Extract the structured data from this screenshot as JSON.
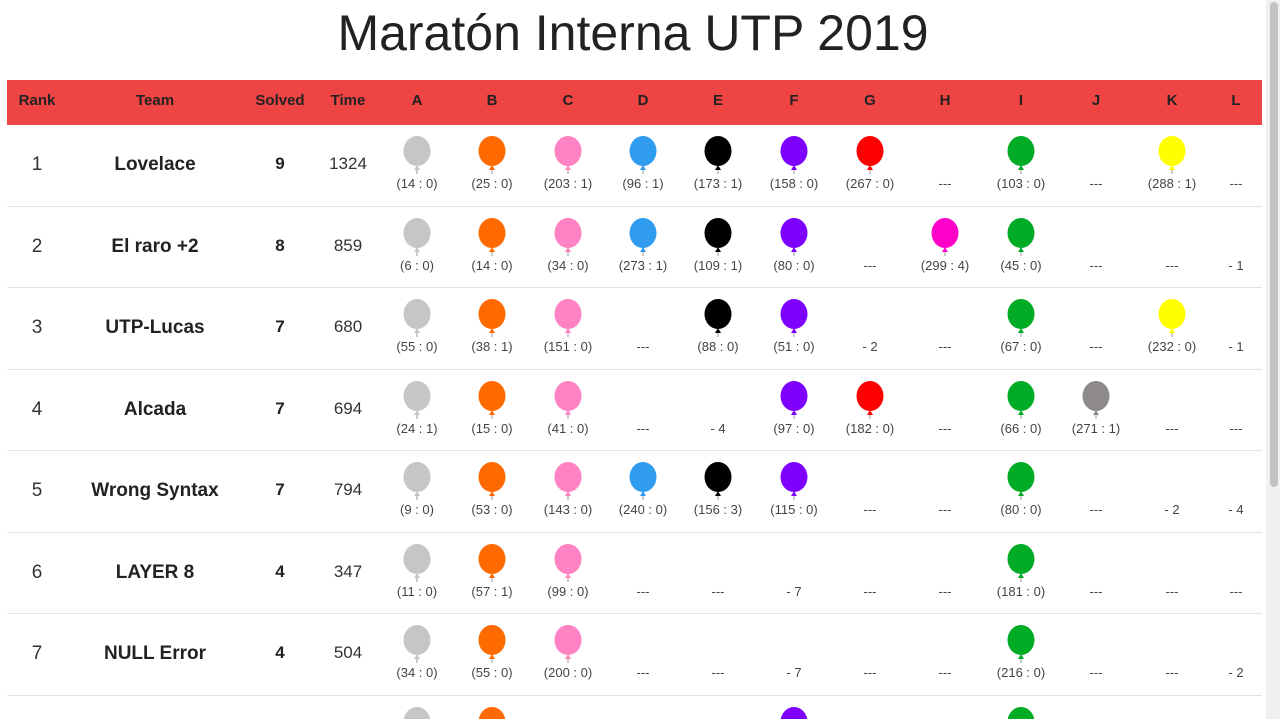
{
  "header": {
    "title": "Maratón Interna UTP 2019"
  },
  "table": {
    "columns": [
      "Rank",
      "Team",
      "Solved",
      "Time"
    ],
    "problems": [
      {
        "label": "A",
        "color": "#c6c6c6"
      },
      {
        "label": "B",
        "color": "#ff6a00"
      },
      {
        "label": "C",
        "color": "#ff82c2"
      },
      {
        "label": "D",
        "color": "#2f9cf0"
      },
      {
        "label": "E",
        "color": "#000000"
      },
      {
        "label": "F",
        "color": "#7e00ff"
      },
      {
        "label": "G",
        "color": "#ff0000"
      },
      {
        "label": "H",
        "color": "#ff00c8"
      },
      {
        "label": "I",
        "color": "#00ab25"
      },
      {
        "label": "J",
        "color": "#8e8a8a"
      },
      {
        "label": "K",
        "color": "#ffff00"
      },
      {
        "label": "L"
      }
    ],
    "rows": [
      {
        "rank": "1",
        "team": "Lovelace",
        "solved": "9",
        "time": "1324",
        "cells": [
          {
            "text": "(14 : 0)"
          },
          {
            "text": "(25 : 0)"
          },
          {
            "text": "(203 : 1)"
          },
          {
            "text": "(96 : 1)"
          },
          {
            "text": "(173 : 1)"
          },
          {
            "text": "(158 : 0)"
          },
          {
            "text": "(267 : 0)"
          },
          "---",
          {
            "text": "(103 : 0)"
          },
          "---",
          {
            "text": "(288 : 1)"
          },
          "---"
        ]
      },
      {
        "rank": "2",
        "team": "El raro +2",
        "solved": "8",
        "time": "859",
        "cells": [
          {
            "text": "(6 : 0)"
          },
          {
            "text": "(14 : 0)"
          },
          {
            "text": "(34 : 0)"
          },
          {
            "text": "(273 : 1)"
          },
          {
            "text": "(109 : 1)"
          },
          {
            "text": "(80 : 0)"
          },
          "---",
          {
            "text": "(299 : 4)"
          },
          {
            "text": "(45 : 0)"
          },
          "---",
          "---",
          "- 1"
        ]
      },
      {
        "rank": "3",
        "team": "UTP-Lucas",
        "solved": "7",
        "time": "680",
        "cells": [
          {
            "text": "(55 : 0)"
          },
          {
            "text": "(38 : 1)"
          },
          {
            "text": "(151 : 0)"
          },
          "---",
          {
            "text": "(88 : 0)"
          },
          {
            "text": "(51 : 0)"
          },
          "- 2",
          "---",
          {
            "text": "(67 : 0)"
          },
          "---",
          {
            "text": "(232 : 0)"
          },
          "- 1"
        ]
      },
      {
        "rank": "4",
        "team": "Alcada",
        "solved": "7",
        "time": "694",
        "cells": [
          {
            "text": "(24 : 1)"
          },
          {
            "text": "(15 : 0)"
          },
          {
            "text": "(41 : 0)"
          },
          "---",
          "- 4",
          {
            "text": "(97 : 0)"
          },
          {
            "text": "(182 : 0)"
          },
          "---",
          {
            "text": "(66 : 0)"
          },
          {
            "text": "(271 : 1)"
          },
          "---",
          "---"
        ]
      },
      {
        "rank": "5",
        "team": "Wrong Syntax",
        "solved": "7",
        "time": "794",
        "cells": [
          {
            "text": "(9 : 0)"
          },
          {
            "text": "(53 : 0)"
          },
          {
            "text": "(143 : 0)"
          },
          {
            "text": "(240 : 0)"
          },
          {
            "text": "(156 : 3)"
          },
          {
            "text": "(115 : 0)"
          },
          "---",
          "---",
          {
            "text": "(80 : 0)"
          },
          "---",
          "- 2",
          "- 4"
        ]
      },
      {
        "rank": "6",
        "team": "LAYER 8",
        "solved": "4",
        "time": "347",
        "cells": [
          {
            "text": "(11 : 0)"
          },
          {
            "text": "(57 : 1)"
          },
          {
            "text": "(99 : 0)"
          },
          "---",
          "---",
          "- 7",
          "---",
          "---",
          {
            "text": "(181 : 0)"
          },
          "---",
          "---",
          "---"
        ]
      },
      {
        "rank": "7",
        "team": "NULL Error",
        "solved": "4",
        "time": "504",
        "cells": [
          {
            "text": "(34 : 0)"
          },
          {
            "text": "(55 : 0)"
          },
          {
            "text": "(200 : 0)"
          },
          "---",
          "---",
          "- 7",
          "---",
          "---",
          {
            "text": "(216 : 0)"
          },
          "---",
          "---",
          "- 2"
        ]
      }
    ]
  }
}
